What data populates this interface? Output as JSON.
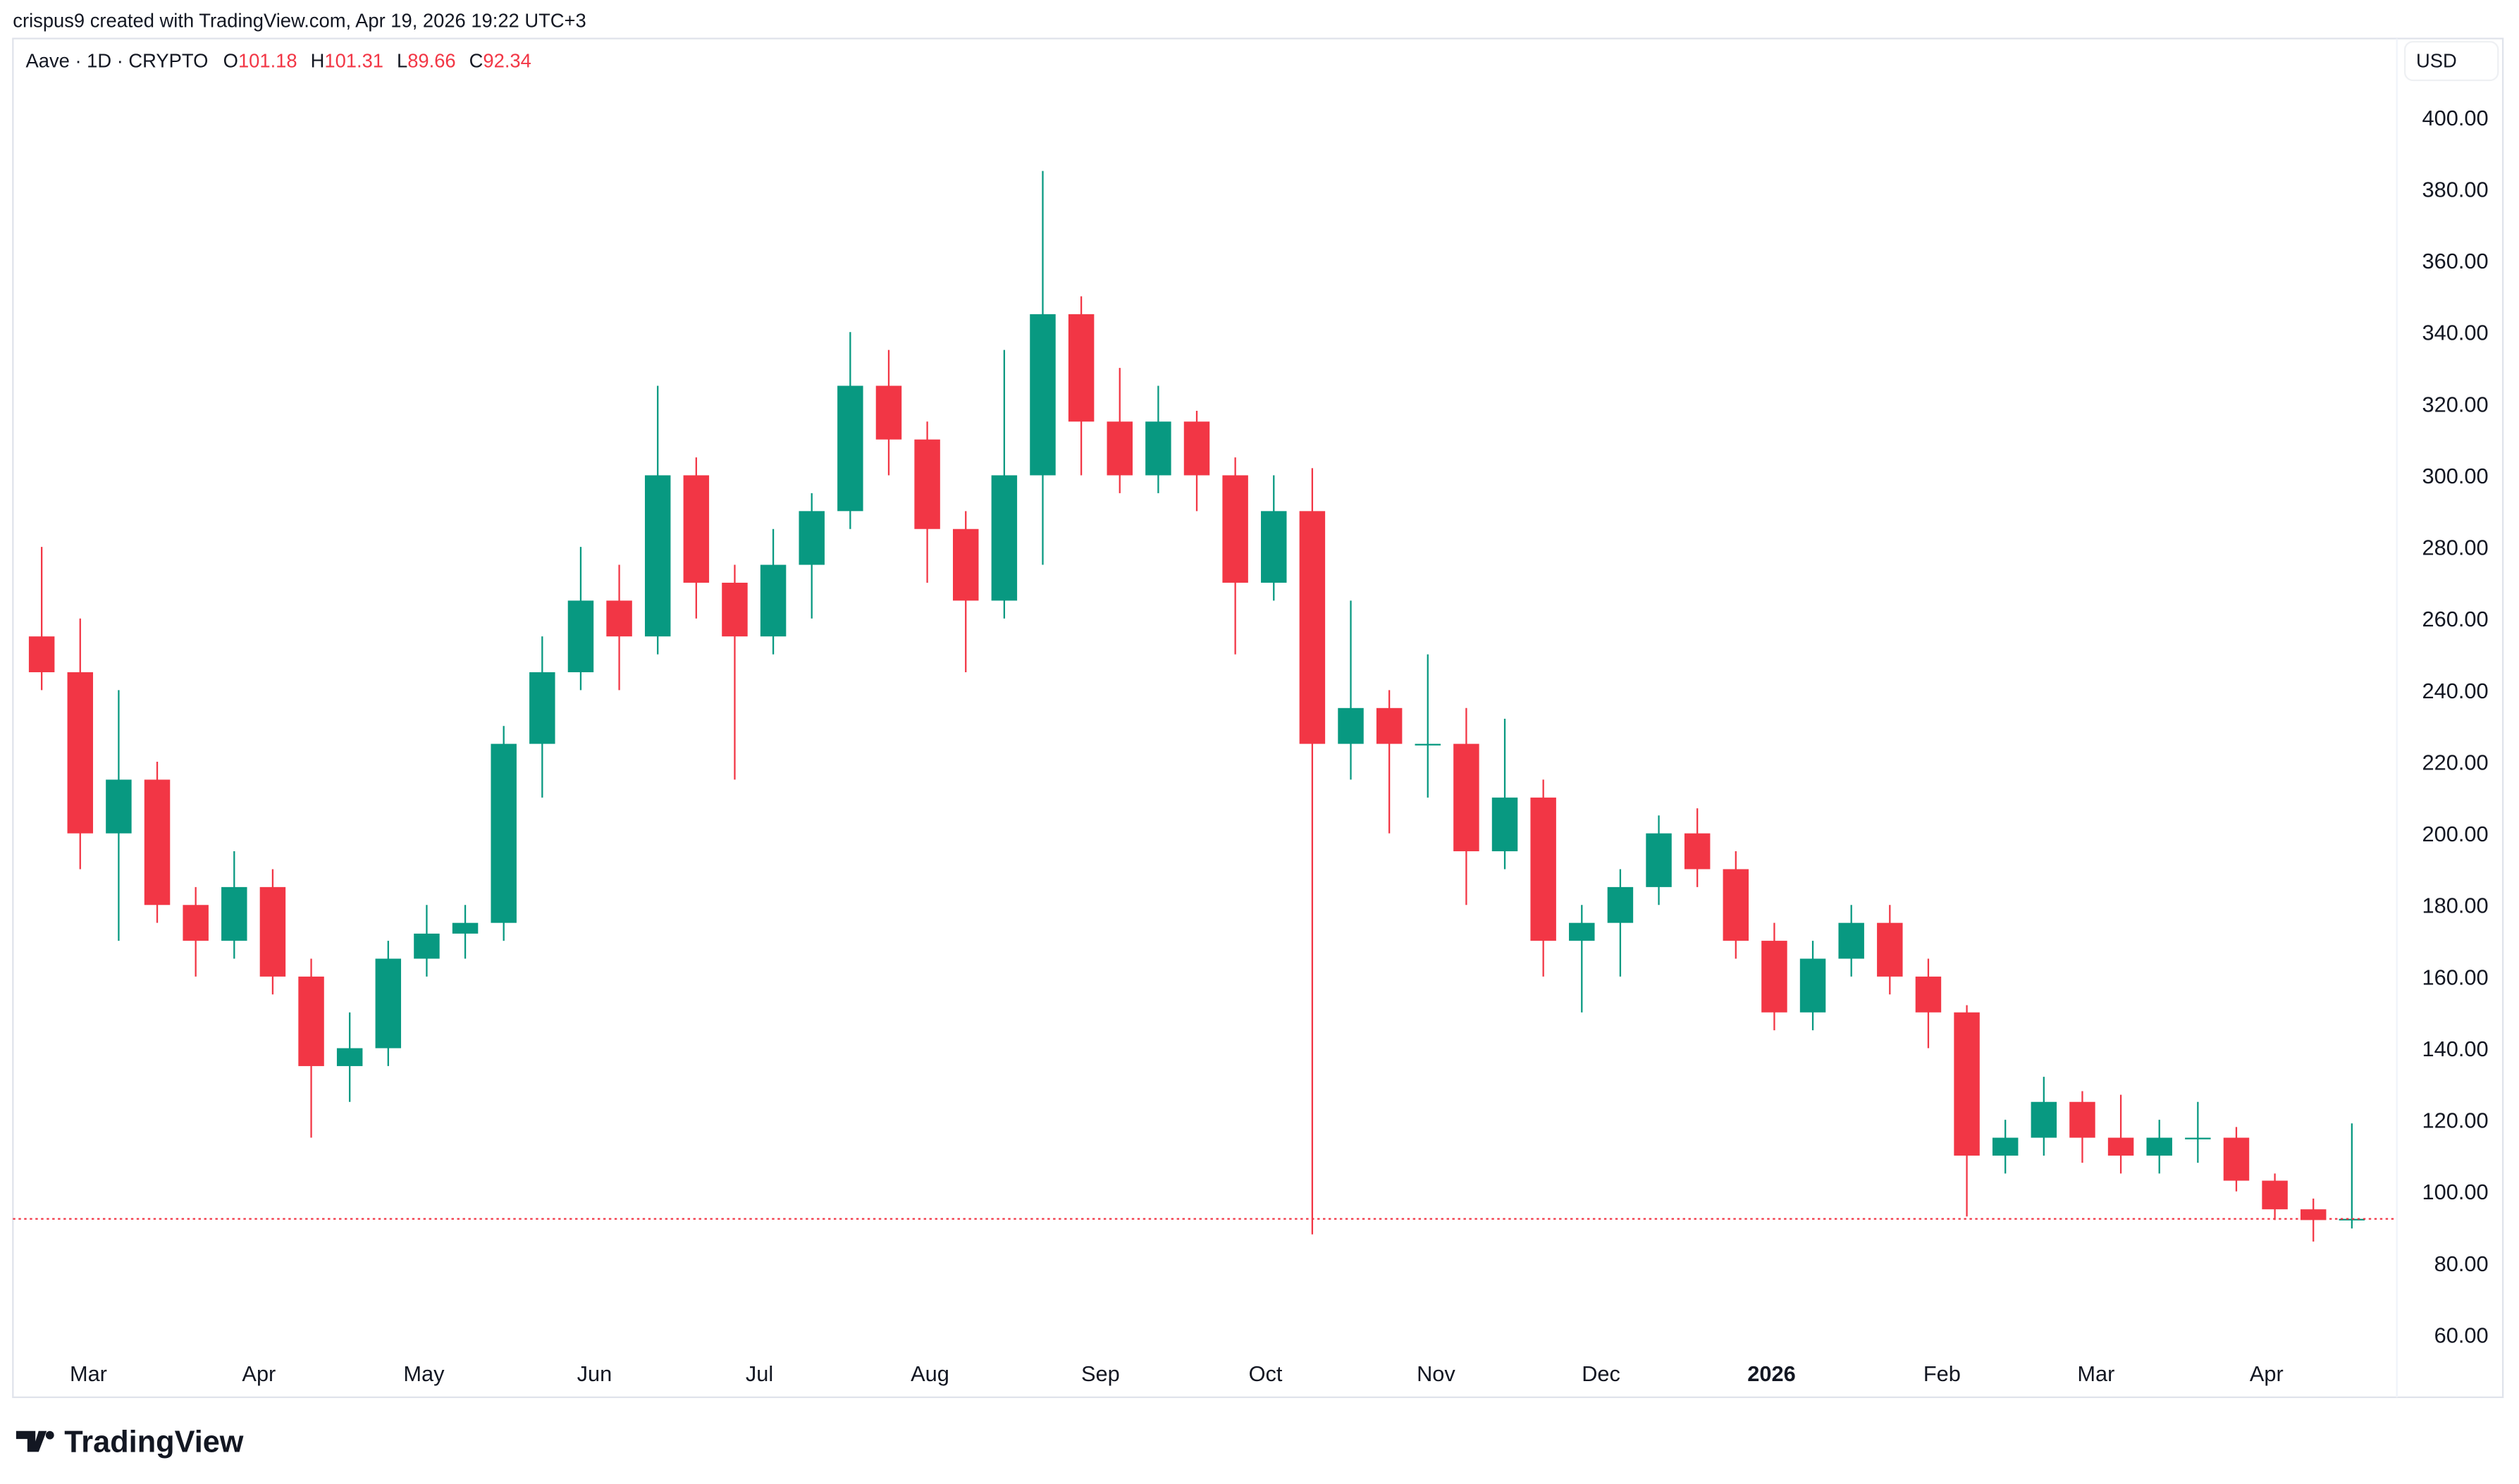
{
  "header": {
    "attribution": "crispus9 created with TradingView.com, Apr 19, 2026 19:22 UTC+3",
    "symbol": "Aave · 1D · CRYPTO",
    "ohlc": {
      "o_label": "O",
      "o": "101.18",
      "h_label": "H",
      "h": "101.31",
      "l_label": "L",
      "l": "89.66",
      "c_label": "C",
      "c": "92.34"
    }
  },
  "currency": "USD",
  "logo_text": "TradingView",
  "colors": {
    "up": "#089981",
    "down": "#F23645",
    "price_line": "#F23645",
    "text": "#131722",
    "border": "#E0E3EB"
  },
  "chart_data": {
    "type": "candlestick",
    "interval_shown": "1D",
    "note_resolution": "weekly",
    "yaxis": {
      "range": [
        60,
        400
      ],
      "ticks": [
        "400.00",
        "380.00",
        "360.00",
        "340.00",
        "320.00",
        "300.00",
        "280.00",
        "260.00",
        "240.00",
        "220.00",
        "200.00",
        "180.00",
        "160.00",
        "140.00",
        "120.00",
        "100.00",
        "80.00",
        "60.00"
      ],
      "position": "right"
    },
    "xaxis": {
      "ticks": [
        {
          "label": "Mar",
          "date": "2025-03-01"
        },
        {
          "label": "Apr",
          "date": "2025-04-01"
        },
        {
          "label": "May",
          "date": "2025-05-01"
        },
        {
          "label": "Jun",
          "date": "2025-06-01"
        },
        {
          "label": "Jul",
          "date": "2025-07-01"
        },
        {
          "label": "Aug",
          "date": "2025-08-01"
        },
        {
          "label": "Sep",
          "date": "2025-09-01"
        },
        {
          "label": "Oct",
          "date": "2025-10-01"
        },
        {
          "label": "Nov",
          "date": "2025-11-01"
        },
        {
          "label": "Dec",
          "date": "2025-12-01"
        },
        {
          "label": "2026",
          "date": "2026-01-01",
          "bold": true
        },
        {
          "label": "Feb",
          "date": "2026-02-01"
        },
        {
          "label": "Mar",
          "date": "2026-03-01"
        },
        {
          "label": "Apr",
          "date": "2026-04-01"
        }
      ]
    },
    "last_price": 92.34,
    "candles": [
      [
        "2025-02-17",
        255,
        280,
        240,
        245
      ],
      [
        "2025-02-24",
        245,
        260,
        190,
        200
      ],
      [
        "2025-03-03",
        200,
        240,
        170,
        215
      ],
      [
        "2025-03-10",
        215,
        220,
        175,
        180
      ],
      [
        "2025-03-17",
        180,
        185,
        160,
        170
      ],
      [
        "2025-03-24",
        170,
        195,
        165,
        185
      ],
      [
        "2025-03-31",
        185,
        190,
        155,
        160
      ],
      [
        "2025-04-07",
        160,
        165,
        115,
        135
      ],
      [
        "2025-04-14",
        135,
        150,
        125,
        140
      ],
      [
        "2025-04-21",
        140,
        170,
        135,
        165
      ],
      [
        "2025-04-28",
        165,
        180,
        160,
        172
      ],
      [
        "2025-05-05",
        172,
        180,
        165,
        175
      ],
      [
        "2025-05-12",
        175,
        230,
        170,
        225
      ],
      [
        "2025-05-19",
        225,
        255,
        210,
        245
      ],
      [
        "2025-05-26",
        245,
        280,
        240,
        265
      ],
      [
        "2025-06-02",
        265,
        275,
        240,
        255
      ],
      [
        "2025-06-09",
        255,
        325,
        250,
        300
      ],
      [
        "2025-06-16",
        300,
        305,
        260,
        270
      ],
      [
        "2025-06-23",
        270,
        275,
        215,
        255
      ],
      [
        "2025-06-30",
        255,
        285,
        250,
        275
      ],
      [
        "2025-07-07",
        275,
        295,
        260,
        290
      ],
      [
        "2025-07-14",
        290,
        340,
        285,
        325
      ],
      [
        "2025-07-21",
        325,
        335,
        300,
        310
      ],
      [
        "2025-07-28",
        310,
        315,
        270,
        285
      ],
      [
        "2025-08-04",
        285,
        290,
        245,
        265
      ],
      [
        "2025-08-11",
        265,
        335,
        260,
        300
      ],
      [
        "2025-08-18",
        300,
        385,
        275,
        345
      ],
      [
        "2025-08-25",
        345,
        350,
        300,
        315
      ],
      [
        "2025-09-01",
        315,
        330,
        295,
        300
      ],
      [
        "2025-09-08",
        300,
        325,
        295,
        315
      ],
      [
        "2025-09-15",
        315,
        318,
        290,
        300
      ],
      [
        "2025-09-22",
        300,
        305,
        250,
        270
      ],
      [
        "2025-09-29",
        270,
        300,
        265,
        290
      ],
      [
        "2025-10-06",
        290,
        302,
        88,
        225
      ],
      [
        "2025-10-13",
        225,
        265,
        215,
        235
      ],
      [
        "2025-10-20",
        235,
        240,
        200,
        225
      ],
      [
        "2025-10-27",
        225,
        250,
        210,
        225
      ],
      [
        "2025-11-03",
        225,
        235,
        180,
        195
      ],
      [
        "2025-11-10",
        195,
        232,
        190,
        210
      ],
      [
        "2025-11-17",
        210,
        215,
        160,
        170
      ],
      [
        "2025-11-24",
        170,
        180,
        150,
        175
      ],
      [
        "2025-12-01",
        175,
        190,
        160,
        185
      ],
      [
        "2025-12-08",
        185,
        205,
        180,
        200
      ],
      [
        "2025-12-15",
        200,
        207,
        185,
        190
      ],
      [
        "2025-12-22",
        190,
        195,
        165,
        170
      ],
      [
        "2025-12-29",
        170,
        175,
        145,
        150
      ],
      [
        "2026-01-05",
        150,
        170,
        145,
        165
      ],
      [
        "2026-01-12",
        165,
        180,
        160,
        175
      ],
      [
        "2026-01-19",
        175,
        180,
        155,
        160
      ],
      [
        "2026-01-26",
        160,
        165,
        140,
        150
      ],
      [
        "2026-02-02",
        150,
        152,
        93,
        110
      ],
      [
        "2026-02-09",
        110,
        120,
        105,
        115
      ],
      [
        "2026-02-16",
        115,
        132,
        110,
        125
      ],
      [
        "2026-02-23",
        125,
        128,
        108,
        115
      ],
      [
        "2026-03-02",
        115,
        127,
        105,
        110
      ],
      [
        "2026-03-09",
        110,
        120,
        105,
        115
      ],
      [
        "2026-03-16",
        115,
        125,
        108,
        115
      ],
      [
        "2026-03-23",
        115,
        118,
        100,
        103
      ],
      [
        "2026-03-30",
        103,
        105,
        92,
        95
      ],
      [
        "2026-04-06",
        95,
        98,
        86,
        92
      ],
      [
        "2026-04-13",
        92,
        119,
        89.66,
        92.34
      ]
    ]
  }
}
